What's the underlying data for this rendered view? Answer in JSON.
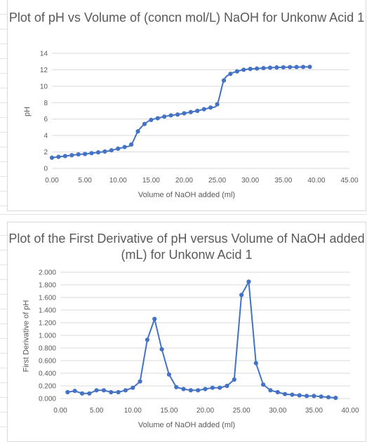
{
  "chart_data": [
    {
      "type": "line",
      "title": "Plot of pH vs Volume of (concn mol/L) NaOH  for Unkonw Acid 1",
      "xlabel": "Volume of NaOH added (ml)",
      "ylabel": "pH",
      "xlim": [
        0,
        45
      ],
      "ylim": [
        0,
        14
      ],
      "x_ticks": [
        "0.00",
        "5.00",
        "10.00",
        "15.00",
        "20.00",
        "25.00",
        "30.00",
        "35.00",
        "40.00",
        "45.00"
      ],
      "y_ticks": [
        "0",
        "2",
        "4",
        "6",
        "8",
        "10",
        "12",
        "14"
      ],
      "grid": true,
      "color": "#4472C4",
      "series": [
        {
          "x": [
            0,
            1,
            2,
            3,
            4,
            5,
            6,
            7,
            8,
            9,
            10,
            11,
            12,
            13,
            14,
            15,
            16,
            17,
            18,
            19,
            20,
            21,
            22,
            23,
            24,
            25,
            26,
            27,
            28,
            29,
            30,
            31,
            32,
            33,
            34,
            35,
            36,
            37,
            38,
            39
          ],
          "y": [
            1.3,
            1.4,
            1.5,
            1.6,
            1.7,
            1.75,
            1.85,
            1.95,
            2.05,
            2.2,
            2.4,
            2.6,
            2.9,
            4.5,
            5.4,
            5.9,
            6.1,
            6.3,
            6.45,
            6.55,
            6.7,
            6.85,
            7.0,
            7.2,
            7.4,
            7.8,
            10.7,
            11.5,
            11.8,
            12.0,
            12.1,
            12.15,
            12.2,
            12.25,
            12.28,
            12.3,
            12.32,
            12.33,
            12.34,
            12.35
          ]
        }
      ]
    },
    {
      "type": "line",
      "title": "Plot of the First Derivative of pH versus Volume of NaOH added (mL) for Unkonw Acid 1",
      "xlabel": "Volume of NaOH added (ml)",
      "ylabel": "First Derivative of pH",
      "xlim": [
        0,
        40
      ],
      "ylim": [
        0,
        2
      ],
      "x_ticks": [
        "0.00",
        "5.00",
        "10.00",
        "15.00",
        "20.00",
        "25.00",
        "30.00",
        "35.00",
        "40.00"
      ],
      "y_ticks": [
        "0.000",
        "0.200",
        "0.400",
        "0.600",
        "0.800",
        "1.000",
        "1.200",
        "1.400",
        "1.600",
        "1.800",
        "2.000"
      ],
      "grid": true,
      "color": "#4472C4",
      "series": [
        {
          "x": [
            1,
            2,
            3,
            4,
            5,
            6,
            7,
            8,
            9,
            10,
            11,
            12,
            13,
            14,
            15,
            16,
            17,
            18,
            19,
            20,
            21,
            22,
            23,
            24,
            25,
            26,
            27,
            28,
            29,
            30,
            31,
            32,
            33,
            34,
            35,
            36,
            37,
            38
          ],
          "y": [
            0.1,
            0.12,
            0.08,
            0.08,
            0.13,
            0.13,
            0.1,
            0.1,
            0.13,
            0.17,
            0.27,
            0.93,
            1.26,
            0.78,
            0.38,
            0.18,
            0.15,
            0.13,
            0.13,
            0.15,
            0.17,
            0.17,
            0.2,
            0.3,
            1.64,
            1.85,
            0.56,
            0.22,
            0.13,
            0.1,
            0.07,
            0.06,
            0.05,
            0.04,
            0.04,
            0.03,
            0.02,
            0.01
          ]
        }
      ]
    }
  ]
}
